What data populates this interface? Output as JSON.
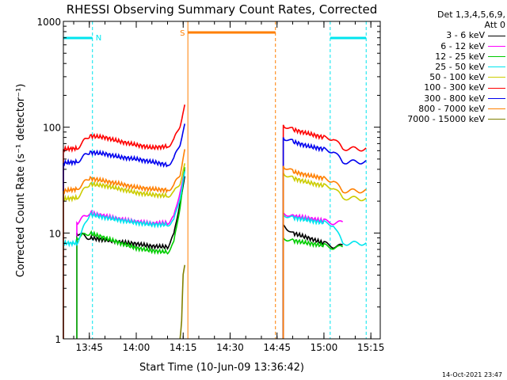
{
  "chart_data": {
    "type": "line",
    "title": "RHESSI Observing Summary Count Rates, Corrected",
    "xlabel": "Start Time (10-Jun-09 13:36:42)",
    "ylabel": "Corrected Count Rate (s⁻¹ detector⁻¹)",
    "yscale": "log",
    "ylim": [
      1,
      1000
    ],
    "xlim": [
      "13:36:42",
      "15:18:00"
    ],
    "x_ticks": [
      "13:45",
      "14:00",
      "14:15",
      "14:30",
      "14:45",
      "15:00",
      "15:15"
    ],
    "y_ticks": [
      "1",
      "10",
      "100",
      "1000"
    ],
    "header": [
      "Det 1,3,4,5,6,9,",
      "Att 0"
    ],
    "flags": [
      {
        "label": "N",
        "color": "#00e5ee",
        "intervals": [
          [
            "13:36:42",
            "13:46:00"
          ],
          [
            "15:02:00",
            "15:13:30"
          ]
        ]
      },
      {
        "label": "S",
        "color": "#ff7f00",
        "intervals": [
          [
            "14:16:30",
            "14:44:30"
          ]
        ]
      }
    ],
    "series": [
      {
        "name": "3 - 6 keV",
        "color": "#000000",
        "values": [
          {
            "t": "13:41:00",
            "v": 10
          },
          {
            "t": "13:45:00",
            "v": 9
          },
          {
            "t": "13:50:00",
            "v": 8.6
          },
          {
            "t": "13:55:00",
            "v": 8.2
          },
          {
            "t": "14:00:00",
            "v": 7.9
          },
          {
            "t": "14:05:00",
            "v": 7.5
          },
          {
            "t": "14:10:00",
            "v": 7.4
          },
          {
            "t": "14:12:00",
            "v": 9.5
          },
          {
            "t": "14:14:00",
            "v": 20
          },
          {
            "t": "14:15:30",
            "v": 35
          },
          {
            "t": "14:47:00",
            "v": 12
          },
          {
            "t": "14:50:00",
            "v": 10
          },
          {
            "t": "14:55:00",
            "v": 9
          },
          {
            "t": "15:00:00",
            "v": 8
          },
          {
            "t": "15:03:00",
            "v": 7.5
          },
          {
            "t": "15:06:00",
            "v": 7.5
          }
        ]
      },
      {
        "name": "6 - 12 keV",
        "color": "#ff00ff",
        "values": [
          {
            "t": "13:41:00",
            "v": 12.5
          },
          {
            "t": "13:45:00",
            "v": 15.5
          },
          {
            "t": "13:50:00",
            "v": 14.5
          },
          {
            "t": "13:55:00",
            "v": 13.5
          },
          {
            "t": "14:00:00",
            "v": 12.8
          },
          {
            "t": "14:05:00",
            "v": 12.3
          },
          {
            "t": "14:10:00",
            "v": 12.5
          },
          {
            "t": "14:12:00",
            "v": 14
          },
          {
            "t": "14:14:00",
            "v": 25
          },
          {
            "t": "14:15:30",
            "v": 40
          },
          {
            "t": "14:47:00",
            "v": 15.5
          },
          {
            "t": "14:50:00",
            "v": 14.5
          },
          {
            "t": "14:55:00",
            "v": 13.8
          },
          {
            "t": "15:00:00",
            "v": 13
          },
          {
            "t": "15:03:00",
            "v": 12.5
          },
          {
            "t": "15:06:00",
            "v": 12.5
          }
        ]
      },
      {
        "name": "12 - 25 keV",
        "color": "#00cc00",
        "values": [
          {
            "t": "13:41:00",
            "v": 9
          },
          {
            "t": "13:45:00",
            "v": 10
          },
          {
            "t": "13:50:00",
            "v": 9
          },
          {
            "t": "13:55:00",
            "v": 8
          },
          {
            "t": "14:00:00",
            "v": 7.2
          },
          {
            "t": "14:05:00",
            "v": 6.8
          },
          {
            "t": "14:10:00",
            "v": 6.6
          },
          {
            "t": "14:12:00",
            "v": 8
          },
          {
            "t": "14:14:00",
            "v": 18
          },
          {
            "t": "14:15:30",
            "v": 42
          },
          {
            "t": "14:47:00",
            "v": 9
          },
          {
            "t": "14:50:00",
            "v": 8.5
          },
          {
            "t": "14:55:00",
            "v": 8
          },
          {
            "t": "15:00:00",
            "v": 7.6
          },
          {
            "t": "15:03:00",
            "v": 7.3
          },
          {
            "t": "15:06:00",
            "v": 7.3
          }
        ]
      },
      {
        "name": "25 - 50 keV",
        "color": "#00e5ee",
        "values": [
          {
            "t": "13:36:42",
            "v": 8
          },
          {
            "t": "13:41:00",
            "v": 8
          },
          {
            "t": "13:45:00",
            "v": 15
          },
          {
            "t": "13:50:00",
            "v": 14
          },
          {
            "t": "13:55:00",
            "v": 13.2
          },
          {
            "t": "14:00:00",
            "v": 12.5
          },
          {
            "t": "14:05:00",
            "v": 12
          },
          {
            "t": "14:10:00",
            "v": 12
          },
          {
            "t": "14:12:00",
            "v": 13
          },
          {
            "t": "14:14:00",
            "v": 22
          },
          {
            "t": "14:15:30",
            "v": 38
          },
          {
            "t": "14:47:00",
            "v": 15
          },
          {
            "t": "14:50:00",
            "v": 14
          },
          {
            "t": "14:55:00",
            "v": 13.2
          },
          {
            "t": "15:00:00",
            "v": 12.5
          },
          {
            "t": "15:03:00",
            "v": 12
          },
          {
            "t": "15:06:00",
            "v": 8
          },
          {
            "t": "15:13:30",
            "v": 8
          }
        ]
      },
      {
        "name": "50 - 100 keV",
        "color": "#cccc00",
        "values": [
          {
            "t": "13:36:42",
            "v": 21
          },
          {
            "t": "13:41:00",
            "v": 21.5
          },
          {
            "t": "13:45:00",
            "v": 29
          },
          {
            "t": "13:50:00",
            "v": 28
          },
          {
            "t": "13:55:00",
            "v": 26
          },
          {
            "t": "14:00:00",
            "v": 24
          },
          {
            "t": "14:05:00",
            "v": 23
          },
          {
            "t": "14:10:00",
            "v": 22.5
          },
          {
            "t": "14:12:00",
            "v": 24
          },
          {
            "t": "14:14:00",
            "v": 30
          },
          {
            "t": "14:15:30",
            "v": 45
          },
          {
            "t": "14:47:00",
            "v": 37
          },
          {
            "t": "14:50:00",
            "v": 33
          },
          {
            "t": "14:55:00",
            "v": 30
          },
          {
            "t": "15:00:00",
            "v": 28
          },
          {
            "t": "15:03:00",
            "v": 27
          },
          {
            "t": "15:06:00",
            "v": 21.5
          },
          {
            "t": "15:13:30",
            "v": 21
          }
        ]
      },
      {
        "name": "100 - 300 keV",
        "color": "#ff0000",
        "values": [
          {
            "t": "13:36:42",
            "v": 62
          },
          {
            "t": "13:41:00",
            "v": 63
          },
          {
            "t": "13:45:00",
            "v": 83
          },
          {
            "t": "13:50:00",
            "v": 80
          },
          {
            "t": "13:55:00",
            "v": 73
          },
          {
            "t": "14:00:00",
            "v": 68
          },
          {
            "t": "14:05:00",
            "v": 64
          },
          {
            "t": "14:10:00",
            "v": 66
          },
          {
            "t": "14:12:00",
            "v": 75
          },
          {
            "t": "14:14:00",
            "v": 105
          },
          {
            "t": "14:15:30",
            "v": 160
          },
          {
            "t": "14:47:00",
            "v": 105
          },
          {
            "t": "14:50:00",
            "v": 95
          },
          {
            "t": "14:55:00",
            "v": 87
          },
          {
            "t": "15:00:00",
            "v": 80
          },
          {
            "t": "15:03:00",
            "v": 78
          },
          {
            "t": "15:06:00",
            "v": 63
          },
          {
            "t": "15:13:30",
            "v": 62
          }
        ]
      },
      {
        "name": "300 - 800 keV",
        "color": "#0000ee",
        "values": [
          {
            "t": "13:36:42",
            "v": 46
          },
          {
            "t": "13:41:00",
            "v": 47
          },
          {
            "t": "13:45:00",
            "v": 58
          },
          {
            "t": "13:50:00",
            "v": 56
          },
          {
            "t": "13:55:00",
            "v": 52
          },
          {
            "t": "14:00:00",
            "v": 50
          },
          {
            "t": "14:05:00",
            "v": 47
          },
          {
            "t": "14:10:00",
            "v": 44
          },
          {
            "t": "14:12:00",
            "v": 50
          },
          {
            "t": "14:14:00",
            "v": 70
          },
          {
            "t": "14:15:30",
            "v": 105
          },
          {
            "t": "14:47:00",
            "v": 80
          },
          {
            "t": "14:50:00",
            "v": 73
          },
          {
            "t": "14:55:00",
            "v": 66
          },
          {
            "t": "15:00:00",
            "v": 62
          },
          {
            "t": "15:03:00",
            "v": 59
          },
          {
            "t": "15:06:00",
            "v": 47
          },
          {
            "t": "15:13:30",
            "v": 47
          }
        ]
      },
      {
        "name": "800 - 7000 keV",
        "color": "#ff7f00",
        "values": [
          {
            "t": "13:36:42",
            "v": 25
          },
          {
            "t": "13:41:00",
            "v": 26
          },
          {
            "t": "13:45:00",
            "v": 33
          },
          {
            "t": "13:50:00",
            "v": 31
          },
          {
            "t": "13:55:00",
            "v": 29
          },
          {
            "t": "14:00:00",
            "v": 27
          },
          {
            "t": "14:05:00",
            "v": 26
          },
          {
            "t": "14:10:00",
            "v": 25.5
          },
          {
            "t": "14:12:00",
            "v": 28
          },
          {
            "t": "14:14:00",
            "v": 36
          },
          {
            "t": "14:15:30",
            "v": 60
          },
          {
            "t": "14:47:00",
            "v": 43
          },
          {
            "t": "14:50:00",
            "v": 38
          },
          {
            "t": "14:55:00",
            "v": 35
          },
          {
            "t": "15:00:00",
            "v": 33
          },
          {
            "t": "15:03:00",
            "v": 31
          },
          {
            "t": "15:06:00",
            "v": 25
          },
          {
            "t": "15:13:30",
            "v": 25
          }
        ]
      },
      {
        "name": "7000 - 15000 keV",
        "color": "#808000",
        "values": [
          {
            "t": "14:14:00",
            "v": 1
          },
          {
            "t": "14:14:30",
            "v": 1.5
          },
          {
            "t": "14:15:00",
            "v": 4
          },
          {
            "t": "14:15:30",
            "v": 4.8
          }
        ]
      }
    ]
  },
  "footer": {
    "date": "14-Oct-2021 23:47"
  }
}
